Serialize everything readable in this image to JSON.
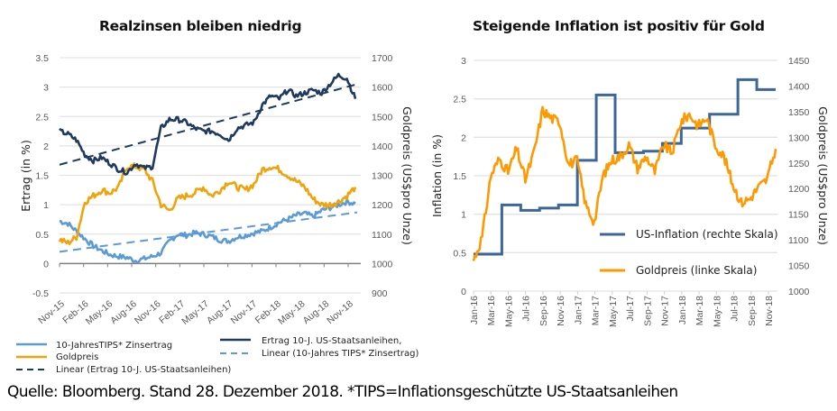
{
  "chart_data": [
    {
      "type": "line",
      "title": "Realzinsen bleiben niedrig",
      "ylabel": "Ertrag (in %)",
      "y2label": "Goldpreis (US$pro Unze)",
      "ylim": [
        -0.5,
        3.5
      ],
      "y2lim": [
        900,
        1700
      ],
      "yticks": [
        "3.5",
        "3",
        "2.5",
        "2",
        "1.5",
        "1",
        "0.5",
        "0",
        "-0.5"
      ],
      "y2ticks": [
        "1700",
        "1600",
        "1500",
        "1400",
        "1300",
        "1200",
        "1100",
        "1000",
        "900"
      ],
      "categories": [
        "Nov-15",
        "Feb-16",
        "May-16",
        "Aug-16",
        "Nov-16",
        "Feb-17",
        "May-17",
        "Aug-17",
        "Nov-17",
        "Feb-18",
        "May-18",
        "Aug-18",
        "Nov-18"
      ],
      "grid": true,
      "legend_position": "bottom",
      "series": [
        {
          "name": "10-JahresTIPS* Zinsertrag",
          "axis": "left",
          "color": "#5b9bd5",
          "style": "solid",
          "values": [
            0.72,
            0.68,
            0.55,
            0.42,
            0.3,
            0.22,
            0.15,
            0.12,
            0.1,
            0.05,
            0.08,
            0.12,
            0.18,
            0.38,
            0.5,
            0.48,
            0.52,
            0.5,
            0.46,
            0.4,
            0.38,
            0.45,
            0.48,
            0.52,
            0.55,
            0.62,
            0.7,
            0.75,
            0.82,
            0.85,
            0.8,
            0.9,
            0.95,
            1.0,
            1.05,
            1.02
          ]
        },
        {
          "name": "Goldpreis",
          "axis": "right",
          "color": "#f0a30a",
          "style": "solid",
          "values": [
            1080,
            1070,
            1090,
            1210,
            1230,
            1250,
            1240,
            1260,
            1330,
            1330,
            1320,
            1280,
            1200,
            1180,
            1220,
            1230,
            1240,
            1260,
            1230,
            1250,
            1280,
            1260,
            1250,
            1270,
            1320,
            1330,
            1320,
            1300,
            1280,
            1260,
            1220,
            1200,
            1200,
            1210,
            1230,
            1260
          ]
        },
        {
          "name": "Ertrag 10-J. US-Staatsanleihen,",
          "axis": "left",
          "color": "#1f3a5f",
          "style": "solid",
          "values": [
            2.25,
            2.2,
            2.1,
            1.85,
            1.75,
            1.8,
            1.7,
            1.6,
            1.55,
            1.7,
            1.62,
            1.65,
            2.3,
            2.45,
            2.45,
            2.4,
            2.3,
            2.25,
            2.25,
            2.2,
            2.1,
            2.3,
            2.35,
            2.4,
            2.7,
            2.85,
            2.8,
            2.95,
            2.85,
            2.9,
            2.95,
            2.9,
            3.05,
            3.2,
            3.15,
            2.8
          ]
        },
        {
          "name": "Linear (10-Jahres TIPS* Zinsertrag)",
          "axis": "left",
          "color": "#5b9bd5",
          "style": "dashed",
          "values": [
            0.2,
            0.87
          ]
        },
        {
          "name": "Linear (Ertrag 10-J. US-Staatsanleihen)",
          "axis": "left",
          "color": "#1f3a5f",
          "style": "dashed",
          "values": [
            1.68,
            3.05
          ]
        }
      ]
    },
    {
      "type": "line",
      "title": "Steigende Inflation ist positiv für Gold",
      "ylabel": "Inflation (in %)",
      "y2label": "Goldpreis (US$pro Unze)",
      "ylim": [
        0,
        3
      ],
      "y2lim": [
        1000,
        1450
      ],
      "yticks": [
        "3",
        "2.5",
        "2",
        "1.5",
        "1",
        "0.5",
        "0"
      ],
      "y2ticks": [
        "1450",
        "1400",
        "1350",
        "1300",
        "1250",
        "1200",
        "1150",
        "1100",
        "1050",
        "1000"
      ],
      "categories": [
        "Jan-16",
        "Mar-16",
        "May-16",
        "Jul-16",
        "Sep-16",
        "Nov-16",
        "Jan-17",
        "Mar-17",
        "May-17",
        "Jul-17",
        "Sep-17",
        "Nov-17",
        "Jan-18",
        "Mar-18",
        "May-18",
        "Jul-18",
        "Sep-18",
        "Nov-18"
      ],
      "grid": true,
      "legend_position": "lower-right",
      "series": [
        {
          "name": "US-Inflation (rechte Skala)",
          "color": "#3d6699",
          "style": "step",
          "values": [
            0.48,
            0.48,
            0.48,
            1.12,
            1.12,
            1.05,
            1.05,
            1.08,
            1.08,
            1.12,
            1.12,
            1.7,
            1.7,
            2.55,
            2.55,
            1.8,
            1.8,
            1.8,
            1.82,
            1.82,
            1.92,
            1.92,
            2.12,
            2.12,
            2.12,
            2.3,
            2.3,
            2.3,
            2.75,
            2.75,
            2.62,
            2.62
          ]
        },
        {
          "name": "Goldpreis (linke Skala)",
          "color": "#ff9900",
          "style": "solid",
          "values": [
            0.4,
            0.7,
            1.5,
            1.72,
            1.55,
            1.85,
            1.45,
            1.8,
            2.35,
            2.25,
            2.2,
            1.65,
            1.7,
            1.12,
            0.9,
            1.5,
            1.7,
            1.75,
            1.9,
            1.6,
            1.75,
            1.55,
            1.9,
            1.8,
            2.2,
            2.3,
            2.15,
            2.25,
            1.9,
            1.75,
            1.4,
            1.15,
            1.2,
            1.35,
            1.45,
            1.85
          ]
        }
      ]
    }
  ],
  "legend_left": {
    "items": [
      "10-JahresTIPS* Zinsertrag",
      "Goldpreis",
      "Linear (Ertrag 10-J. US-Staatsanleihen)",
      "Ertrag 10-J. US-Staatsanleihen,",
      "Linear (10-Jahres TIPS* Zinsertrag)"
    ]
  },
  "legend_right": {
    "items": [
      "US-Inflation (rechte Skala)",
      "Goldpreis (linke Skala)"
    ]
  },
  "source": "Quelle: Bloomberg. Stand 28. Dezember 2018. *TIPS=Inflationsgeschützte US-Staatsanleihen"
}
